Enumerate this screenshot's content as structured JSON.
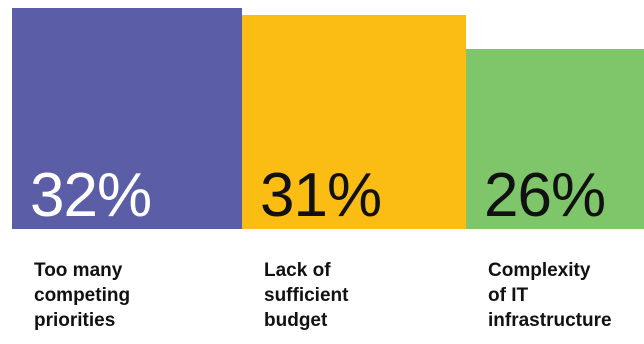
{
  "chart_data": {
    "type": "bar",
    "categories": [
      [
        "Too many",
        "competing",
        "priorities"
      ],
      [
        "Lack of",
        "sufficient",
        "budget"
      ],
      [
        "Complexity",
        "of IT",
        "infrastructure"
      ]
    ],
    "values": [
      32,
      31,
      26
    ],
    "value_labels": [
      "32%",
      "31%",
      "26%"
    ],
    "colors": [
      "#5b5ea6",
      "#fbbd14",
      "#7fc56a"
    ],
    "label_colors": [
      "#ffffff",
      "#111111",
      "#111111"
    ],
    "ylim": [
      0,
      32
    ],
    "grid": false,
    "legend": "none"
  }
}
